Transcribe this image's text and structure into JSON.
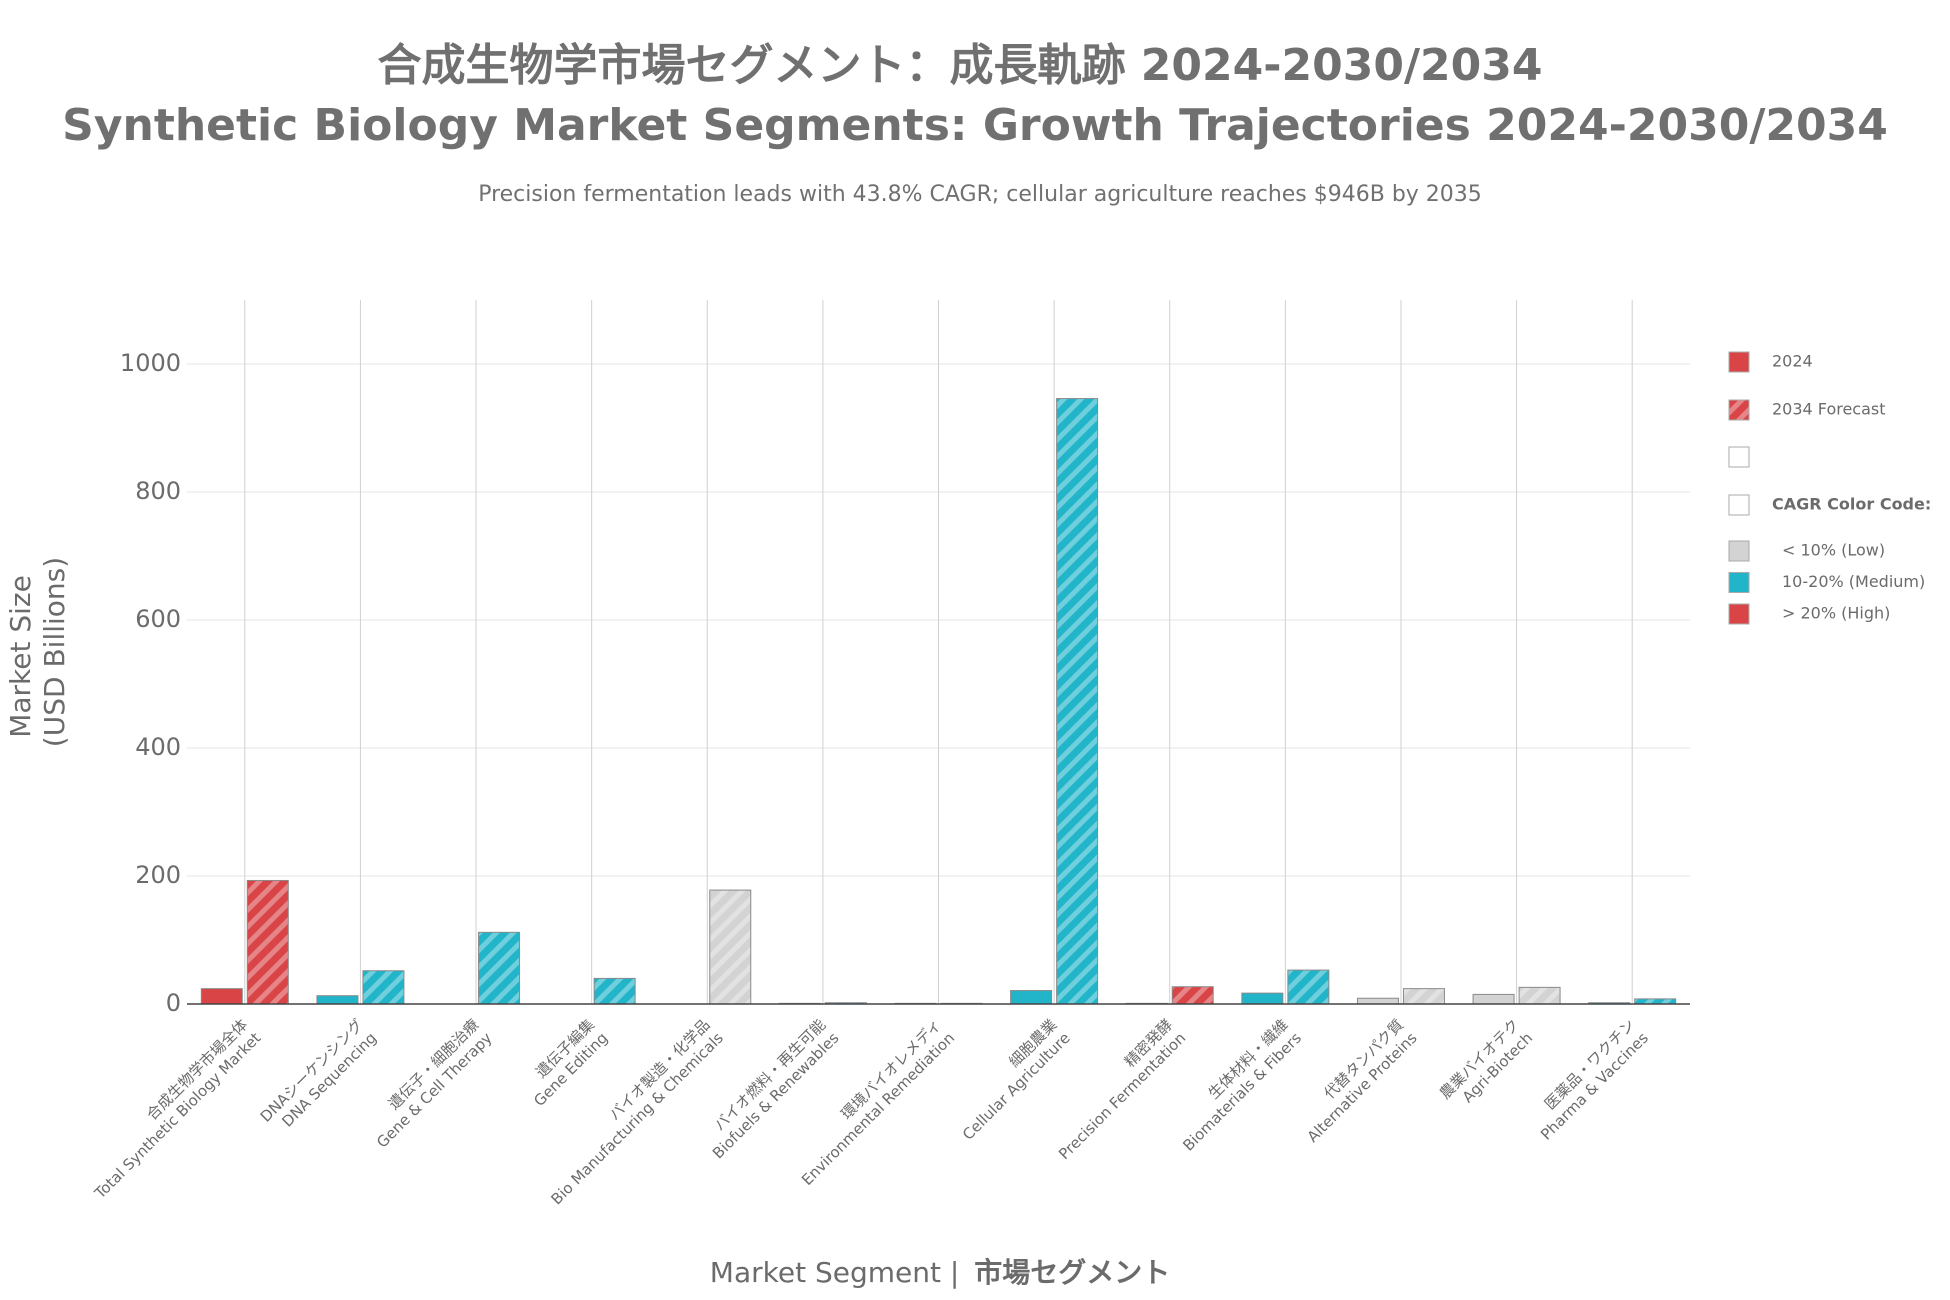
{
  "chart_data": {
    "type": "bar",
    "title_ja": "合成生物学市場セグメント：成長軌跡 2024-2030/2034",
    "title": "Synthetic Biology Market Segments: Growth Trajectories 2024-2030/2034",
    "subtitle": "Precision fermentation leads with 43.8% CAGR; cellular agriculture reaches $946B by 2035",
    "ylabel": [
      "Market Size",
      "(USD Billions)"
    ],
    "xlabel": [
      "Market Segment |",
      "市場セグメント"
    ],
    "categories_ja": [
      "合成生物学市場全体",
      "DNAシーケンシング",
      "遺伝子・細胞治療",
      "遺伝子編集",
      "バイオ製造・化学品",
      "バイオ燃料・再生可能",
      "環境バイオレメディ",
      "細胞農業",
      "精密発酵",
      "生体材料・繊維",
      "代替タンパク質",
      "農業バイオテク",
      "医薬品・ワクチン"
    ],
    "categories": [
      "Total Synthetic Biology Market",
      "DNA Sequencing",
      "Gene & Cell Therapy",
      "Gene Editing",
      "Bio Manufacturing & Chemicals",
      "Biofuels & Renewables",
      "Environmental Remediation",
      "Cellular Agriculture",
      "Precision Fermentation",
      "Biomaterials & Fibers",
      "Alternative Proteins",
      "Agri-Biotech",
      "Pharma & Vaccines"
    ],
    "colors": [
      "#d94447",
      "#22b5c9",
      "#22b5c9",
      "#22b5c9",
      "#d3d3d3",
      "#22b5c9",
      "#22b5c9",
      "#22b5c9",
      "#d94447",
      "#22b5c9",
      "#d3d3d3",
      "#d3d3d3",
      "#22b5c9"
    ],
    "series": [
      {
        "name": "2024",
        "color": "#d94447",
        "values": [
          24,
          13,
          0,
          0,
          0,
          1,
          1,
          21,
          1,
          17,
          9,
          15,
          2
        ]
      },
      {
        "name": "2034 Forecast",
        "color": "#d94447",
        "hatched": true,
        "values": [
          193,
          52,
          112,
          40,
          178,
          2,
          1,
          946,
          27,
          53,
          24,
          26,
          8
        ]
      }
    ],
    "legend_title": "CAGR Color Code:",
    "cagr_legend": [
      {
        "label": "< 10% (Low)",
        "color": "#d3d3d3"
      },
      {
        "label": "10-20% (Medium)",
        "color": "#22b5c9"
      },
      {
        "label": "> 20% (High)",
        "color": "#d94447"
      }
    ],
    "ylim": [
      0,
      1100
    ],
    "yticks": [
      0,
      200,
      400,
      600,
      800,
      1000
    ],
    "grid": true
  }
}
